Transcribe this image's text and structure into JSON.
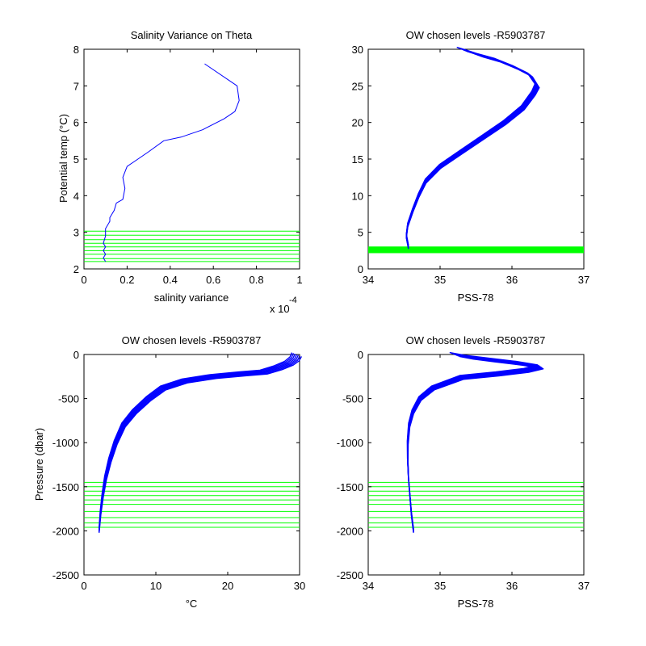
{
  "figure": {
    "background": "#ffffff",
    "profile_color": "#0000ff",
    "level_color": "#00ff00"
  },
  "chart_data": [
    {
      "id": "p1",
      "type": "line",
      "title": "Salinity Variance on Theta",
      "xlabel": "salinity variance",
      "ylabel": "Potential temp (°C)",
      "xlim": [
        0,
        1
      ],
      "ylim": [
        2,
        8
      ],
      "xticks": [
        0,
        0.2,
        0.4,
        0.6,
        0.8,
        1
      ],
      "xtick_labels": [
        "0",
        "0.2",
        "0.4",
        "0.6",
        "0.8",
        "1"
      ],
      "yticks": [
        2,
        3,
        4,
        5,
        6,
        7,
        8
      ],
      "ytick_labels": [
        "2",
        "3",
        "4",
        "5",
        "6",
        "7",
        "8"
      ],
      "x_exponent_label": "x 10",
      "x_exponent_power": "-4",
      "grid": false,
      "series": [
        {
          "x": [
            0.56,
            0.71,
            0.72,
            0.7,
            0.65,
            0.55,
            0.45,
            0.37,
            0.3,
            0.25,
            0.2,
            0.18,
            0.19,
            0.18,
            0.15,
            0.14,
            0.12,
            0.12,
            0.1,
            0.1,
            0.09,
            0.1,
            0.09,
            0.1,
            0.09,
            0.1
          ],
          "y": [
            7.6,
            7.0,
            6.6,
            6.3,
            6.1,
            5.8,
            5.6,
            5.5,
            5.2,
            5.0,
            4.8,
            4.5,
            4.2,
            3.9,
            3.8,
            3.6,
            3.4,
            3.3,
            3.1,
            2.9,
            2.7,
            2.6,
            2.5,
            2.4,
            2.3,
            2.2
          ]
        }
      ],
      "hlines": [
        2.2,
        2.28,
        2.4,
        2.5,
        2.6,
        2.7,
        2.8,
        2.92,
        3.03
      ]
    },
    {
      "id": "p2",
      "type": "line",
      "title": "OW chosen levels -R5903787",
      "xlabel": "PSS-78",
      "ylabel": "",
      "xlim": [
        34,
        37
      ],
      "ylim": [
        0,
        30
      ],
      "xticks": [
        34,
        35,
        36,
        37
      ],
      "xtick_labels": [
        "34",
        "35",
        "36",
        "37"
      ],
      "yticks": [
        0,
        5,
        10,
        15,
        20,
        25,
        30
      ],
      "ytick_labels": [
        "0",
        "5",
        "10",
        "15",
        "20",
        "25",
        "30"
      ],
      "grid": false,
      "series": [
        {
          "x": [
            34.56,
            34.53,
            34.55,
            34.62,
            34.7,
            34.8,
            35.0,
            35.3,
            35.6,
            35.9,
            36.15,
            36.3,
            36.35,
            36.25,
            36.05,
            35.8,
            35.55,
            35.4,
            35.3
          ],
          "y": [
            3.0,
            4.5,
            6.0,
            8.0,
            10.0,
            12.0,
            14.0,
            16.0,
            18.0,
            20.0,
            22.0,
            24.0,
            25.0,
            26.5,
            27.5,
            28.5,
            29.2,
            29.7,
            30.0
          ]
        }
      ],
      "hlines": [
        2.2,
        2.3,
        2.4,
        2.5,
        2.6,
        2.7,
        2.8,
        2.9,
        3.0
      ]
    },
    {
      "id": "p3",
      "type": "line",
      "title": "OW chosen levels -R5903787",
      "xlabel": "°C",
      "ylabel": "Pressure (dbar)",
      "xlim": [
        0,
        30
      ],
      "ylim": [
        -2500,
        0
      ],
      "xticks": [
        0,
        10,
        20,
        30
      ],
      "xtick_labels": [
        "0",
        "10",
        "20",
        "30"
      ],
      "yticks": [
        -2500,
        -2000,
        -1500,
        -1000,
        -500,
        0
      ],
      "ytick_labels": [
        "-2500",
        "-2000",
        "-1500",
        "-1000",
        "-500",
        "0"
      ],
      "grid": false,
      "series": [
        {
          "x": [
            2.1,
            2.3,
            2.6,
            3.0,
            3.6,
            4.4,
            5.5,
            7.0,
            9.0,
            11.0,
            14.0,
            18.0,
            22.0,
            25.0,
            27.0,
            28.5,
            29.3,
            29.6
          ],
          "y": [
            -2000,
            -1800,
            -1600,
            -1400,
            -1200,
            -1000,
            -800,
            -650,
            -500,
            -380,
            -300,
            -250,
            -220,
            -200,
            -150,
            -100,
            -50,
            0
          ]
        }
      ],
      "hlines": [
        -1450,
        -1500,
        -1550,
        -1600,
        -1650,
        -1700,
        -1780,
        -1850,
        -1910,
        -1960
      ]
    },
    {
      "id": "p4",
      "type": "line",
      "title": "OW chosen levels -R5903787",
      "xlabel": "PSS-78",
      "ylabel": "",
      "xlim": [
        34,
        37
      ],
      "ylim": [
        -2500,
        0
      ],
      "xticks": [
        34,
        35,
        36,
        37
      ],
      "xtick_labels": [
        "34",
        "35",
        "36",
        "37"
      ],
      "yticks": [
        -2500,
        -2000,
        -1500,
        -1000,
        -500,
        0
      ],
      "ytick_labels": [
        "-2500",
        "-2000",
        "-1500",
        "-1000",
        "-500",
        "0"
      ],
      "grid": false,
      "series": [
        {
          "x": [
            34.63,
            34.6,
            34.58,
            34.56,
            34.55,
            34.55,
            34.57,
            34.62,
            34.72,
            34.9,
            35.3,
            35.8,
            36.2,
            36.4,
            36.1,
            35.7,
            35.4,
            35.2
          ],
          "y": [
            -2000,
            -1800,
            -1600,
            -1400,
            -1200,
            -1000,
            -800,
            -650,
            -500,
            -380,
            -260,
            -220,
            -180,
            -140,
            -100,
            -60,
            -30,
            0
          ]
        }
      ],
      "hlines": [
        -1450,
        -1500,
        -1550,
        -1600,
        -1650,
        -1700,
        -1780,
        -1850,
        -1910,
        -1960
      ]
    }
  ]
}
